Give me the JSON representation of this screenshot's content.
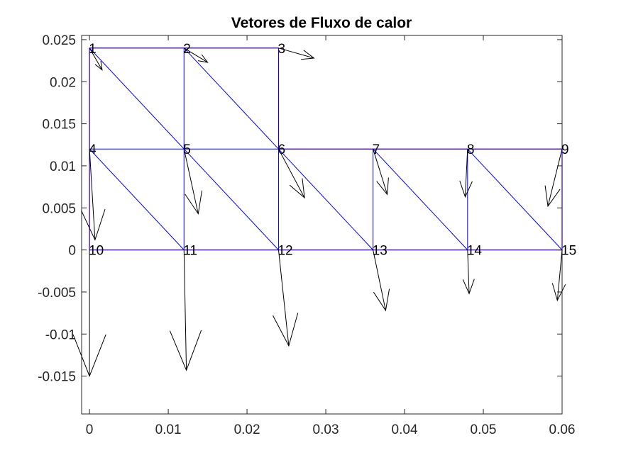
{
  "chart_data": {
    "type": "quiver",
    "title": "Vetores de Fluxo de calor",
    "xlabel": "",
    "ylabel": "",
    "xlim": [
      -0.001,
      0.06
    ],
    "ylim": [
      -0.0195,
      0.0255
    ],
    "xticks": [
      0,
      0.01,
      0.02,
      0.03,
      0.04,
      0.05,
      0.06
    ],
    "xtick_labels": [
      "0",
      "0.01",
      "0.02",
      "0.03",
      "0.04",
      "0.05",
      "0.06"
    ],
    "yticks": [
      -0.015,
      -0.01,
      -0.005,
      0,
      0.005,
      0.01,
      0.015,
      0.02,
      0.025
    ],
    "ytick_labels": [
      "-0.015",
      "-0.01",
      "-0.005",
      "0",
      "0.005",
      "0.01",
      "0.015",
      "0.02",
      "0.025"
    ],
    "grid": false,
    "colors": {
      "boundary": "#ff0000",
      "mesh": "#0000ff",
      "arrow": "#000000",
      "axis": "#262626"
    },
    "nodes": [
      {
        "id": "1",
        "x": 0.0,
        "y": 0.024
      },
      {
        "id": "2",
        "x": 0.012,
        "y": 0.024
      },
      {
        "id": "3",
        "x": 0.024,
        "y": 0.024
      },
      {
        "id": "4",
        "x": 0.0,
        "y": 0.012
      },
      {
        "id": "5",
        "x": 0.012,
        "y": 0.012
      },
      {
        "id": "6",
        "x": 0.024,
        "y": 0.012
      },
      {
        "id": "7",
        "x": 0.036,
        "y": 0.012
      },
      {
        "id": "8",
        "x": 0.048,
        "y": 0.012
      },
      {
        "id": "9",
        "x": 0.06,
        "y": 0.012
      },
      {
        "id": "10",
        "x": 0.0,
        "y": 0.0
      },
      {
        "id": "11",
        "x": 0.012,
        "y": 0.0
      },
      {
        "id": "12",
        "x": 0.024,
        "y": 0.0
      },
      {
        "id": "13",
        "x": 0.036,
        "y": 0.0
      },
      {
        "id": "14",
        "x": 0.048,
        "y": 0.0
      },
      {
        "id": "15",
        "x": 0.06,
        "y": 0.0
      }
    ],
    "boundary": [
      [
        0.0,
        0.0
      ],
      [
        0.06,
        0.0
      ],
      [
        0.06,
        0.012
      ],
      [
        0.024,
        0.012
      ],
      [
        0.024,
        0.024
      ],
      [
        0.0,
        0.024
      ],
      [
        0.0,
        0.0
      ]
    ],
    "mesh_edges": [
      [
        1,
        2
      ],
      [
        2,
        3
      ],
      [
        4,
        5
      ],
      [
        5,
        6
      ],
      [
        6,
        7
      ],
      [
        7,
        8
      ],
      [
        8,
        9
      ],
      [
        10,
        11
      ],
      [
        11,
        12
      ],
      [
        12,
        13
      ],
      [
        13,
        14
      ],
      [
        14,
        15
      ],
      [
        1,
        4
      ],
      [
        2,
        5
      ],
      [
        3,
        6
      ],
      [
        4,
        10
      ],
      [
        5,
        11
      ],
      [
        6,
        12
      ],
      [
        7,
        13
      ],
      [
        8,
        14
      ],
      [
        9,
        15
      ],
      [
        1,
        5
      ],
      [
        2,
        6
      ],
      [
        4,
        11
      ],
      [
        5,
        12
      ],
      [
        6,
        13
      ],
      [
        7,
        14
      ],
      [
        8,
        15
      ]
    ],
    "vectors": [
      {
        "node": "1",
        "u": 0.0016,
        "v": -0.0026
      },
      {
        "node": "2",
        "u": 0.003,
        "v": -0.0017
      },
      {
        "node": "3",
        "u": 0.0045,
        "v": -0.0012
      },
      {
        "node": "4",
        "u": 0.0007,
        "v": -0.0108
      },
      {
        "node": "5",
        "u": 0.0018,
        "v": -0.0077
      },
      {
        "node": "6",
        "u": 0.0033,
        "v": -0.0058
      },
      {
        "node": "7",
        "u": 0.0018,
        "v": -0.0054
      },
      {
        "node": "8",
        "u": -0.0003,
        "v": -0.0057
      },
      {
        "node": "9",
        "u": -0.0018,
        "v": -0.0068
      },
      {
        "node": "10",
        "u": 0.0,
        "v": -0.015
      },
      {
        "node": "11",
        "u": 0.0003,
        "v": -0.0143
      },
      {
        "node": "12",
        "u": 0.0013,
        "v": -0.0114
      },
      {
        "node": "13",
        "u": 0.0016,
        "v": -0.0072
      },
      {
        "node": "14",
        "u": 0.0002,
        "v": -0.0052
      },
      {
        "node": "15",
        "u": -0.0006,
        "v": -0.006
      }
    ]
  }
}
